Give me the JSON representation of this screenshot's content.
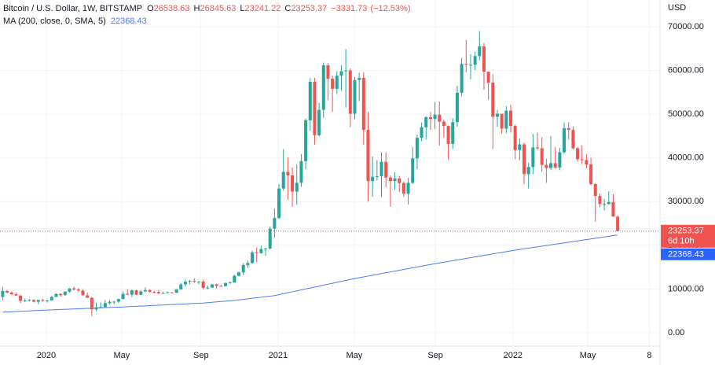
{
  "chart_data": {
    "type": "candlestick",
    "title": "Bitcoin / U.S. Dollar, 1W, BITSTAMP",
    "legend_labels": [
      "O",
      "H",
      "L",
      "C"
    ],
    "change": {
      "value": -3331.73,
      "label": "−3331.73"
    },
    "change_pct": {
      "value": -12.53,
      "label": "(−12.53%)"
    },
    "y_axis_label": "USD",
    "countdown": "6d 10h",
    "up_color": "#26a69a",
    "down_color": "#ef5350",
    "ohlc": [
      [
        8200,
        10500,
        7400,
        9550
      ],
      [
        9550,
        9800,
        9050,
        9200
      ],
      [
        9200,
        9450,
        8700,
        8800
      ],
      [
        8800,
        9100,
        8400,
        8500
      ],
      [
        8500,
        8600,
        6800,
        7300
      ],
      [
        7300,
        7800,
        7000,
        7400
      ],
      [
        7400,
        7750,
        7200,
        7500
      ],
      [
        7500,
        7650,
        6950,
        7100
      ],
      [
        7100,
        7500,
        6500,
        7500
      ],
      [
        7500,
        7700,
        7100,
        7300
      ],
      [
        7300,
        7500,
        6900,
        7400
      ],
      [
        7400,
        8450,
        7400,
        8200
      ],
      [
        8200,
        9000,
        8150,
        8900
      ],
      [
        8900,
        9000,
        8250,
        8600
      ],
      [
        8600,
        9500,
        8500,
        9400
      ],
      [
        9400,
        10200,
        9150,
        10150
      ],
      [
        10150,
        10500,
        9700,
        9900
      ],
      [
        9900,
        10250,
        9300,
        9650
      ],
      [
        9650,
        9950,
        8550,
        8550
      ],
      [
        8550,
        9200,
        8000,
        8000
      ],
      [
        8000,
        8150,
        3850,
        5350
      ],
      [
        5350,
        6900,
        5000,
        5800
      ],
      [
        5800,
        6950,
        5700,
        5880
      ],
      [
        5880,
        7450,
        5850,
        6780
      ],
      [
        6780,
        7450,
        6500,
        7100
      ],
      [
        7100,
        7300,
        6500,
        7120
      ],
      [
        7120,
        7800,
        6800,
        7700
      ],
      [
        7700,
        9450,
        7700,
        8900
      ],
      [
        8900,
        9950,
        8600,
        8720
      ],
      [
        8720,
        9850,
        8150,
        9700
      ],
      [
        9700,
        9850,
        8650,
        8700
      ],
      [
        8700,
        9750,
        8650,
        9450
      ],
      [
        9450,
        10400,
        9400,
        9750
      ],
      [
        9750,
        9950,
        9200,
        9340
      ],
      [
        9340,
        9650,
        9000,
        9300
      ],
      [
        9300,
        9800,
        8850,
        9010
      ],
      [
        9010,
        9400,
        8900,
        9080
      ],
      [
        9080,
        9450,
        9050,
        9240
      ],
      [
        9240,
        9300,
        9100,
        9160
      ],
      [
        9160,
        9950,
        9100,
        9930
      ],
      [
        9930,
        11400,
        9900,
        11070
      ],
      [
        11070,
        12100,
        10600,
        11680
      ],
      [
        11680,
        12100,
        11100,
        11850
      ],
      [
        11850,
        12450,
        11400,
        11650
      ],
      [
        11650,
        11800,
        11150,
        11700
      ],
      [
        11700,
        12100,
        9900,
        10280
      ],
      [
        10280,
        10800,
        9900,
        10330
      ],
      [
        10330,
        11100,
        10250,
        11080
      ],
      [
        11080,
        11200,
        10150,
        10720
      ],
      [
        10720,
        10950,
        10500,
        10670
      ],
      [
        10670,
        11500,
        10550,
        11380
      ],
      [
        11380,
        11750,
        11250,
        11500
      ],
      [
        11500,
        13250,
        11400,
        13030
      ],
      [
        13030,
        14000,
        12900,
        13800
      ],
      [
        13800,
        15900,
        13200,
        15480
      ],
      [
        15480,
        16500,
        14800,
        15960
      ],
      [
        15960,
        18800,
        15800,
        18380
      ],
      [
        18380,
        19500,
        16200,
        18200
      ],
      [
        18200,
        19900,
        18100,
        19150
      ],
      [
        19150,
        19400,
        17600,
        19270
      ],
      [
        19270,
        24300,
        19000,
        23800
      ],
      [
        23800,
        28400,
        21800,
        26250
      ],
      [
        26250,
        34000,
        26000,
        33000
      ],
      [
        33000,
        42000,
        32500,
        36800
      ],
      [
        36800,
        40100,
        30400,
        36000
      ],
      [
        36000,
        37800,
        28800,
        32300
      ],
      [
        32300,
        38500,
        29300,
        34300
      ],
      [
        34300,
        40900,
        33400,
        39250
      ],
      [
        39250,
        49000,
        37400,
        48600
      ],
      [
        48600,
        58300,
        46200,
        57400
      ],
      [
        57400,
        58300,
        43000,
        45200
      ],
      [
        45200,
        52600,
        44900,
        51000
      ],
      [
        51000,
        61800,
        49200,
        61200
      ],
      [
        61200,
        61700,
        53200,
        58100
      ],
      [
        58100,
        58800,
        50500,
        55800
      ],
      [
        55800,
        59800,
        54600,
        58800
      ],
      [
        58800,
        61200,
        55400,
        59800
      ],
      [
        59800,
        64900,
        51500,
        60000
      ],
      [
        60000,
        60500,
        47000,
        50100
      ],
      [
        50100,
        58500,
        48800,
        57800
      ],
      [
        57800,
        59500,
        53000,
        58300
      ],
      [
        58300,
        59600,
        43000,
        46400
      ],
      [
        46400,
        50500,
        30000,
        34700
      ],
      [
        34700,
        40300,
        31100,
        35700
      ],
      [
        35700,
        39500,
        34800,
        35800
      ],
      [
        35800,
        41300,
        31000,
        39100
      ],
      [
        39100,
        41300,
        33300,
        35500
      ],
      [
        35500,
        36000,
        28800,
        34700
      ],
      [
        34700,
        36700,
        32700,
        35300
      ],
      [
        35300,
        35900,
        32200,
        34250
      ],
      [
        34250,
        34600,
        31100,
        31800
      ],
      [
        31800,
        35400,
        29300,
        34300
      ],
      [
        34300,
        42500,
        34000,
        39900
      ],
      [
        39900,
        45300,
        37400,
        44600
      ],
      [
        44600,
        48100,
        43800,
        47000
      ],
      [
        47000,
        49500,
        44200,
        49300
      ],
      [
        49300,
        50500,
        46400,
        48900
      ],
      [
        48900,
        52800,
        46600,
        49900
      ],
      [
        49900,
        52900,
        42800,
        48300
      ],
      [
        48300,
        48700,
        44700,
        47300
      ],
      [
        47300,
        47400,
        39600,
        43200
      ],
      [
        43200,
        49100,
        42000,
        48200
      ],
      [
        48200,
        56500,
        47100,
        54900
      ],
      [
        54900,
        62900,
        54100,
        61500
      ],
      [
        61500,
        67000,
        59600,
        61300
      ],
      [
        61300,
        63700,
        58000,
        61300
      ],
      [
        61300,
        64300,
        60100,
        63300
      ],
      [
        63300,
        69000,
        62300,
        65500
      ],
      [
        65500,
        66300,
        55600,
        59700
      ],
      [
        59700,
        59800,
        53300,
        57200
      ],
      [
        57200,
        59100,
        42000,
        49400
      ],
      [
        49400,
        51000,
        47100,
        50100
      ],
      [
        50100,
        50100,
        45600,
        46700
      ],
      [
        46700,
        51900,
        45600,
        50800
      ],
      [
        50800,
        52100,
        45800,
        47300
      ],
      [
        47300,
        47600,
        39700,
        41800
      ],
      [
        41800,
        44500,
        39500,
        43100
      ],
      [
        43100,
        43500,
        34000,
        36300
      ],
      [
        36300,
        38900,
        33000,
        37900
      ],
      [
        37900,
        45500,
        36300,
        42400
      ],
      [
        42400,
        45800,
        41800,
        42200
      ],
      [
        42200,
        44700,
        36800,
        38400
      ],
      [
        38400,
        39800,
        34300,
        37700
      ],
      [
        37700,
        45000,
        37200,
        38800
      ],
      [
        38800,
        42500,
        37500,
        37800
      ],
      [
        37800,
        42300,
        37200,
        41300
      ],
      [
        41300,
        48100,
        40900,
        46800
      ],
      [
        46800,
        48200,
        44200,
        46400
      ],
      [
        46400,
        47200,
        41900,
        42200
      ],
      [
        42200,
        42500,
        39200,
        39700
      ],
      [
        39700,
        42900,
        38600,
        39500
      ],
      [
        39500,
        40800,
        37600,
        38500
      ],
      [
        38500,
        40000,
        33700,
        34000
      ],
      [
        34000,
        34200,
        25400,
        31300
      ],
      [
        31300,
        31900,
        28700,
        29450
      ],
      [
        29450,
        30600,
        28000,
        29450
      ],
      [
        29450,
        32400,
        29300,
        29900
      ],
      [
        29900,
        31700,
        26500,
        26585.1
      ],
      [
        26538.63,
        26845.63,
        23241.22,
        23253.37
      ]
    ],
    "series": [
      {
        "name": "MA (200, close, 0, SMA, 5)",
        "color": "#4a7bf7",
        "values": [
          4700,
          4750,
          4800,
          4850,
          4900,
          4950,
          5000,
          5050,
          5100,
          5150,
          5200,
          5241,
          5282,
          5323,
          5364,
          5405,
          5446,
          5487,
          5528,
          5569,
          5610,
          5651,
          5692,
          5733,
          5774,
          5815,
          5856,
          5900,
          5950,
          6000,
          6050,
          6100,
          6150,
          6200,
          6250,
          6300,
          6350,
          6400,
          6450,
          6500,
          6550,
          6600,
          6650,
          6700,
          6750,
          6800,
          6886,
          6972,
          7058,
          7144,
          7230,
          7316,
          7400,
          7522,
          7644,
          7766,
          7888,
          8010,
          8132,
          8254,
          8376,
          8500,
          8717,
          8934,
          9151,
          9368,
          9585,
          9802,
          10019,
          10236,
          10453,
          10670,
          10887,
          11104,
          11321,
          11538,
          11755,
          11972,
          12189,
          12400,
          12589,
          12778,
          12967,
          13156,
          13345,
          13534,
          13723,
          13912,
          14101,
          14290,
          14479,
          14668,
          14857,
          15046,
          15235,
          15424,
          15613,
          15800,
          15972,
          16144,
          16316,
          16488,
          16660,
          16832,
          17004,
          17176,
          17348,
          17520,
          17692,
          17864,
          18036,
          18208,
          18380,
          18552,
          18724,
          18900,
          19051,
          19202,
          19353,
          19503,
          19654,
          19805,
          19956,
          20107,
          20258,
          20409,
          20560,
          20711,
          20861,
          21012,
          21163,
          21314,
          21465,
          21616,
          21767,
          21918,
          22069,
          22219,
          22368.43
        ]
      }
    ],
    "xlim": [
      -0.6,
      147.5
    ],
    "xticks": [
      {
        "value": 9.79,
        "label": "2020"
      },
      {
        "value": 26.7,
        "label": "May"
      },
      {
        "value": 44.5,
        "label": "Sep"
      },
      {
        "value": 61.8,
        "label": "2021"
      },
      {
        "value": 78.9,
        "label": "May"
      },
      {
        "value": 97.1,
        "label": "Sep"
      },
      {
        "value": 114.5,
        "label": "2022"
      },
      {
        "value": 131.3,
        "label": "May"
      },
      {
        "value": 145.1,
        "label": "8"
      }
    ],
    "ylim": [
      -3060,
      76120
    ],
    "yticks": [
      {
        "value": 0,
        "label": "0.00"
      },
      {
        "value": 10000,
        "label": "10000.00"
      },
      {
        "value": 20000,
        "label": "20000.00"
      },
      {
        "value": 30000,
        "label": "30000.00"
      },
      {
        "value": 40000,
        "label": "40000.00"
      },
      {
        "value": 50000,
        "label": "50000.00"
      },
      {
        "value": 60000,
        "label": "60000.00"
      },
      {
        "value": 70000,
        "label": "70000.00"
      }
    ],
    "grid": true
  }
}
